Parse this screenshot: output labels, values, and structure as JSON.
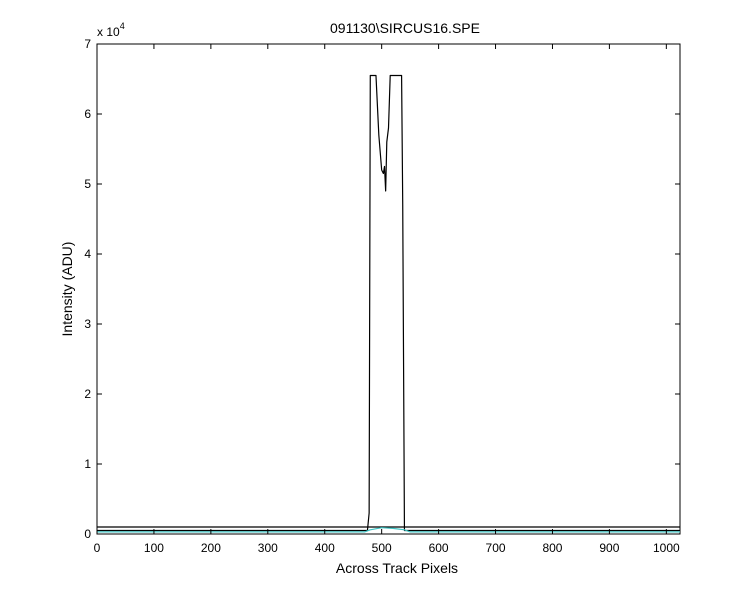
{
  "chart_data": {
    "type": "line",
    "title": "091130\\SIRCUS16.SPE",
    "xlabel": "Across Track Pixels",
    "ylabel": "Intensity (ADU)",
    "y_multiplier_label": "x 10",
    "y_multiplier_exponent": "4",
    "xlim": [
      0,
      1024
    ],
    "ylim": [
      0,
      70000
    ],
    "xticks": [
      0,
      100,
      200,
      300,
      400,
      500,
      600,
      700,
      800,
      900,
      1000
    ],
    "yticks": [
      0,
      1,
      2,
      3,
      4,
      5,
      6,
      7
    ],
    "grid": false,
    "legend": "none",
    "series": [
      {
        "color": "#000000",
        "x": [
          0,
          475,
          478,
          480,
          484,
          490,
          495,
          500,
          503,
          505,
          507,
          509,
          512,
          515,
          520,
          525,
          530,
          535,
          537,
          540,
          1024
        ],
        "y": [
          500,
          500,
          3000,
          65500,
          65500,
          65500,
          57000,
          52000,
          51500,
          52500,
          49000,
          56000,
          58000,
          65500,
          65500,
          65500,
          65500,
          65500,
          47000,
          500,
          500
        ]
      },
      {
        "color": "#000000",
        "x": [
          0,
          1024
        ],
        "y": [
          1000,
          1000
        ]
      },
      {
        "color": "#3ec4c4",
        "x": [
          0,
          470,
          480,
          500,
          520,
          540,
          550,
          1024
        ],
        "y": [
          300,
          300,
          600,
          900,
          800,
          600,
          300,
          300
        ]
      }
    ]
  }
}
